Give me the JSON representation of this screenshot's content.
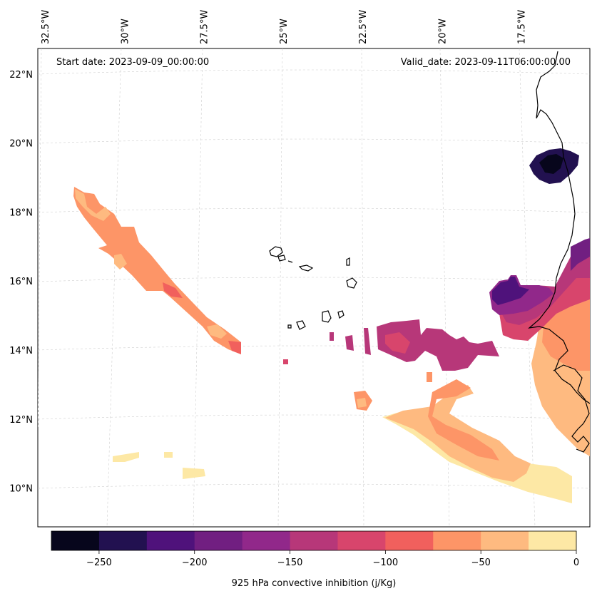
{
  "chart_data": {
    "type": "contour-map",
    "start_date_label": "Start date: 2023-09-09_00:00:00",
    "valid_date_label": "Valid_date: 2023-09-11T06:00:00.00",
    "longitude_labels": [
      "32.5°W",
      "30°W",
      "27.5°W",
      "25°W",
      "22.5°W",
      "20°W",
      "17.5°W"
    ],
    "longitudes": [
      -32.5,
      -30,
      -27.5,
      -25,
      -22.5,
      -20,
      -17.5
    ],
    "latitude_labels": [
      "22°N",
      "20°N",
      "18°N",
      "16°N",
      "14°N",
      "12°N",
      "10°N"
    ],
    "latitudes": [
      22,
      20,
      18,
      16,
      14,
      12,
      10
    ],
    "colorbar": {
      "label": "925 hPa convective inhibition (j/Kg)",
      "levels": [
        -275,
        -250,
        -225,
        -200,
        -175,
        -150,
        -125,
        -100,
        -75,
        -50,
        -25,
        0
      ],
      "tick_values": [
        -250,
        -200,
        -150,
        -100,
        -50,
        0
      ],
      "tick_labels": [
        "−250",
        "−200",
        "−150",
        "−100",
        "−50",
        "0"
      ],
      "colors": [
        "#07061c",
        "#221150",
        "#4f127b",
        "#711f81",
        "#91288a",
        "#b73779",
        "#d8456c",
        "#f1605d",
        "#fd9567",
        "#feba80",
        "#fde8a5"
      ]
    }
  }
}
